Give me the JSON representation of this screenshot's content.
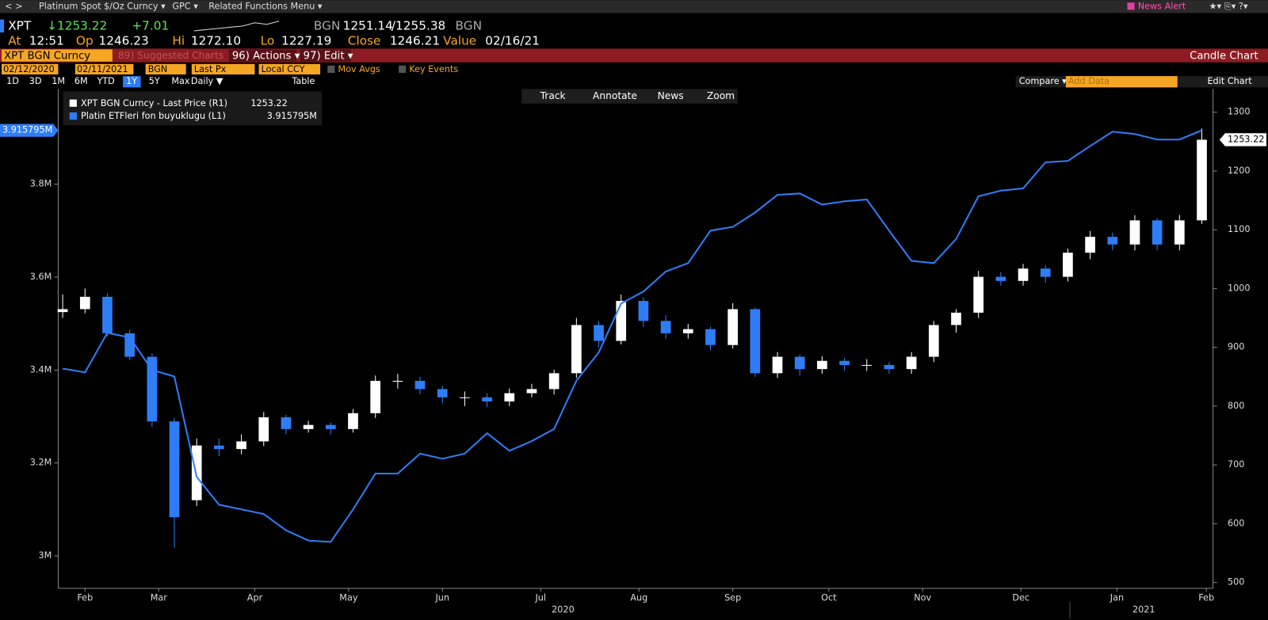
{
  "toolbar": {
    "security": "Platinum Spot $/Oz Curncy ▾",
    "source": "GPC ▾",
    "menu": "Related Functions Menu ▾",
    "news_alert": "News Alert"
  },
  "quote": {
    "ticker": "XPT",
    "last": "↓1253.22",
    "change": "+7.01",
    "bid_source": "BGN",
    "bid": "1251.14",
    "ask": "/1255.38",
    "ask_source": "BGN",
    "at_label": "At",
    "time": "12:51",
    "op_label": "Op",
    "open": "1246.23",
    "hi_label": "Hi",
    "high": "1272.10",
    "lo_label": "Lo",
    "low": "1227.19",
    "close_label": "Close",
    "close": "1246.21",
    "value_label": "Value",
    "value_date": "02/16/21"
  },
  "menu_bar": {
    "security": "XPT BGN Curncy",
    "suggested": "89) Suggested Charts",
    "actions": "96) Actions ▾",
    "edit": "97) Edit ▾",
    "chart_type": "Candle Chart"
  },
  "settings": {
    "start": "02/12/2020",
    "end": "02/11/2021",
    "source": "BGN",
    "field": "Last Px",
    "currency": "Local CCY",
    "mov_avgs": "Mov Avgs",
    "key_events": "Key Events"
  },
  "periods": [
    "1D",
    "3D",
    "1M",
    "6M",
    "YTD",
    "1Y",
    "5Y",
    "Max"
  ],
  "frequency": "Daily ▼",
  "table": "Table",
  "compare": "Compare ▾",
  "add_data": "Add Data",
  "edit_chart": "Edit Chart",
  "tools": [
    "Track",
    "Annotate",
    "News",
    "Zoom"
  ],
  "chart_data": {
    "type": "candlestick",
    "xlim": [
      -0.2,
      51.5
    ],
    "xticks": [
      {
        "value": 1.0,
        "label": "Feb"
      },
      {
        "value": 4.3,
        "label": "Mar"
      },
      {
        "value": 8.6,
        "label": "Apr"
      },
      {
        "value": 12.8,
        "label": "May"
      },
      {
        "value": 17.0,
        "label": "Jun"
      },
      {
        "value": 21.4,
        "label": "Jul"
      },
      {
        "value": 25.8,
        "label": "Aug"
      },
      {
        "value": 30.0,
        "label": "Sep"
      },
      {
        "value": 34.3,
        "label": "Oct"
      },
      {
        "value": 38.5,
        "label": "Nov"
      },
      {
        "value": 42.9,
        "label": "Dec"
      },
      {
        "value": 47.2,
        "label": "Jan"
      },
      {
        "value": 51.2,
        "label": "Feb"
      }
    ],
    "year_labels": [
      {
        "value": 22.4,
        "label": "2020"
      },
      {
        "value": 48.4,
        "label": "2021"
      }
    ],
    "ylim": [
      2.93,
      3.97
    ],
    "yticks": [
      {
        "value": 3,
        "label": "3M"
      },
      {
        "value": 3.2,
        "label": "3.2M"
      },
      {
        "value": 3.4,
        "label": "3.4M"
      },
      {
        "value": 3.6,
        "label": "3.6M"
      },
      {
        "value": 3.8,
        "label": "3.8M"
      }
    ],
    "y2lim": [
      490,
      1312
    ],
    "y2ticks": [
      500,
      600,
      700,
      800,
      900,
      1000,
      1100,
      1200,
      1300
    ],
    "series": [
      {
        "name": "XPT BGN Curncy - Last Price (R1)",
        "type": "candlestick",
        "axis": "y2",
        "up_color": "#ffffff",
        "down_color": "#2f7df6",
        "open": [
          960,
          965,
          986,
          924,
          884,
          774,
          640,
          733,
          727,
          740,
          781,
          761,
          768,
          761,
          788,
          843,
          843,
          829,
          815,
          815,
          808,
          822,
          829,
          856,
          938,
          911,
          979,
          945,
          924,
          931,
          904,
          965,
          856,
          884,
          863,
          877,
          870,
          870,
          863,
          884,
          938,
          959,
          1020,
          1013,
          1034,
          1020,
          1061,
          1088,
          1075,
          1116,
          1075,
          1116
        ],
        "high": [
          990,
          1000,
          992,
          930,
          890,
          780,
          745,
          745,
          752,
          790,
          785,
          775,
          772,
          795,
          852,
          855,
          850,
          835,
          825,
          822,
          830,
          838,
          862,
          950,
          945,
          990,
          985,
          955,
          940,
          935,
          975,
          968,
          892,
          888,
          885,
          882,
          880,
          875,
          892,
          945,
          965,
          1030,
          1028,
          1042,
          1040,
          1068,
          1098,
          1095,
          1125,
          1120,
          1125,
          1272.1
        ],
        "low": [
          950,
          958,
          918,
          878,
          765,
          559,
          630,
          715,
          718,
          732,
          752,
          755,
          752,
          755,
          780,
          830,
          820,
          805,
          800,
          798,
          800,
          815,
          820,
          848,
          900,
          905,
          935,
          915,
          915,
          895,
          898,
          850,
          848,
          852,
          855,
          860,
          860,
          855,
          855,
          875,
          925,
          950,
          1005,
          1005,
          1010,
          1012,
          1050,
          1065,
          1065,
          1065,
          1065,
          1110
        ],
        "close": [
          965,
          986,
          924,
          884,
          774,
          611,
          733,
          727,
          740,
          781,
          761,
          768,
          761,
          788,
          843,
          843,
          829,
          815,
          815,
          808,
          822,
          829,
          856,
          938,
          911,
          979,
          945,
          924,
          931,
          904,
          965,
          856,
          884,
          863,
          877,
          870,
          870,
          863,
          884,
          938,
          959,
          1020,
          1013,
          1034,
          1020,
          1061,
          1088,
          1075,
          1116,
          1075,
          1116,
          1253.22
        ]
      },
      {
        "name": "Platin ETFleri fon buyuklugu (L1)",
        "type": "line",
        "axis": "y",
        "color": "#2f7df6",
        "last_label": "3.915795M",
        "values": [
          3.403,
          3.395,
          3.48,
          3.47,
          3.4,
          3.386,
          3.17,
          3.11,
          3.1,
          3.09,
          3.055,
          3.033,
          3.03,
          3.1,
          3.177,
          3.177,
          3.22,
          3.209,
          3.22,
          3.264,
          3.226,
          3.247,
          3.273,
          3.377,
          3.438,
          3.543,
          3.569,
          3.612,
          3.63,
          3.7,
          3.708,
          3.739,
          3.777,
          3.78,
          3.756,
          3.763,
          3.767,
          3.7,
          3.635,
          3.63,
          3.682,
          3.774,
          3.786,
          3.791,
          3.847,
          3.85,
          3.882,
          3.913,
          3.908,
          3.896,
          3.896,
          3.915795
        ]
      }
    ]
  }
}
